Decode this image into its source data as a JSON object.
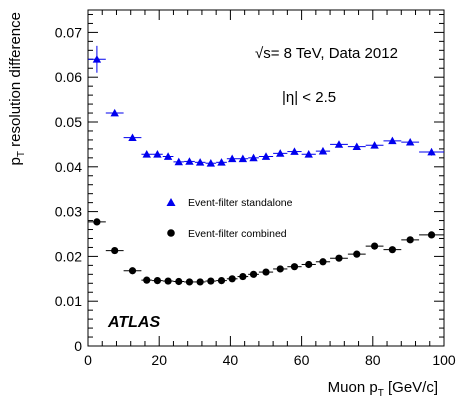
{
  "chart_data": {
    "type": "scatter",
    "xlabel_main": "Muon p",
    "xlabel_sub": "T",
    "xlabel_unit": " [GeV/c]",
    "ylabel_main": "p",
    "ylabel_sub": "T",
    "ylabel_rest": " resolution difference",
    "xlim": [
      0,
      100
    ],
    "ylim": [
      0,
      0.075
    ],
    "x_ticks": [
      0,
      20,
      40,
      60,
      80,
      100
    ],
    "y_ticks": [
      0,
      0.01,
      0.02,
      0.03,
      0.04,
      0.05,
      0.06,
      0.07
    ],
    "x_tick_labels": [
      "0",
      "20",
      "40",
      "60",
      "80",
      "100"
    ],
    "y_tick_labels": [
      "0",
      "0.01",
      "0.02",
      "0.03",
      "0.04",
      "0.05",
      "0.06",
      "0.07"
    ],
    "grid": false,
    "legend_position": "center-left",
    "annotations": {
      "energy_sqrt": "√s",
      "energy_rest": "= 8 TeV, Data 2012",
      "eta": "|η| < 2.5",
      "atlas": "ATLAS"
    },
    "series": [
      {
        "name": "Event-filter  standalone",
        "marker": "triangle",
        "color": "#0000ee",
        "points": [
          {
            "x0": 0,
            "x1": 5,
            "y": 0.064,
            "err": 0.003
          },
          {
            "x0": 5,
            "x1": 10,
            "y": 0.052,
            "err": 0.0005
          },
          {
            "x0": 10,
            "x1": 15,
            "y": 0.0465,
            "err": 0.0004
          },
          {
            "x0": 15,
            "x1": 18,
            "y": 0.0428,
            "err": 0.0003
          },
          {
            "x0": 18,
            "x1": 21,
            "y": 0.0428,
            "err": 0.0003
          },
          {
            "x0": 21,
            "x1": 24,
            "y": 0.0423,
            "err": 0.0003
          },
          {
            "x0": 24,
            "x1": 27,
            "y": 0.0411,
            "err": 0.0003
          },
          {
            "x0": 27,
            "x1": 30,
            "y": 0.0412,
            "err": 0.0003
          },
          {
            "x0": 30,
            "x1": 33,
            "y": 0.041,
            "err": 0.0003
          },
          {
            "x0": 33,
            "x1": 36,
            "y": 0.0408,
            "err": 0.0003
          },
          {
            "x0": 36,
            "x1": 39,
            "y": 0.041,
            "err": 0.0003
          },
          {
            "x0": 39,
            "x1": 42,
            "y": 0.0418,
            "err": 0.0003
          },
          {
            "x0": 42,
            "x1": 45,
            "y": 0.0418,
            "err": 0.0003
          },
          {
            "x0": 45,
            "x1": 48,
            "y": 0.042,
            "err": 0.0003
          },
          {
            "x0": 48,
            "x1": 52,
            "y": 0.0423,
            "err": 0.0003
          },
          {
            "x0": 52,
            "x1": 56,
            "y": 0.043,
            "err": 0.0003
          },
          {
            "x0": 56,
            "x1": 60,
            "y": 0.0434,
            "err": 0.0003
          },
          {
            "x0": 60,
            "x1": 64,
            "y": 0.0428,
            "err": 0.0003
          },
          {
            "x0": 64,
            "x1": 68,
            "y": 0.0435,
            "err": 0.0003
          },
          {
            "x0": 68,
            "x1": 73,
            "y": 0.045,
            "err": 0.0004
          },
          {
            "x0": 73,
            "x1": 78,
            "y": 0.0445,
            "err": 0.0004
          },
          {
            "x0": 78,
            "x1": 83,
            "y": 0.0448,
            "err": 0.0004
          },
          {
            "x0": 83,
            "x1": 88,
            "y": 0.0458,
            "err": 0.0005
          },
          {
            "x0": 88,
            "x1": 93,
            "y": 0.0455,
            "err": 0.0005
          },
          {
            "x0": 93,
            "x1": 100,
            "y": 0.0433,
            "err": 0.0008
          }
        ]
      },
      {
        "name": "Event-filter  combined",
        "marker": "circle",
        "color": "#000000",
        "points": [
          {
            "x0": 0,
            "x1": 5,
            "y": 0.0277,
            "err": 0.0003
          },
          {
            "x0": 5,
            "x1": 10,
            "y": 0.0213,
            "err": 0.0002
          },
          {
            "x0": 10,
            "x1": 15,
            "y": 0.0168,
            "err": 0.0002
          },
          {
            "x0": 15,
            "x1": 18,
            "y": 0.0147,
            "err": 0.0001
          },
          {
            "x0": 18,
            "x1": 21,
            "y": 0.0146,
            "err": 0.0001
          },
          {
            "x0": 21,
            "x1": 24,
            "y": 0.0145,
            "err": 0.0001
          },
          {
            "x0": 24,
            "x1": 27,
            "y": 0.0144,
            "err": 0.0001
          },
          {
            "x0": 27,
            "x1": 30,
            "y": 0.0143,
            "err": 0.0001
          },
          {
            "x0": 30,
            "x1": 33,
            "y": 0.0143,
            "err": 0.0001
          },
          {
            "x0": 33,
            "x1": 36,
            "y": 0.0145,
            "err": 0.0001
          },
          {
            "x0": 36,
            "x1": 39,
            "y": 0.0146,
            "err": 0.0001
          },
          {
            "x0": 39,
            "x1": 42,
            "y": 0.015,
            "err": 0.0001
          },
          {
            "x0": 42,
            "x1": 45,
            "y": 0.0155,
            "err": 0.0001
          },
          {
            "x0": 45,
            "x1": 48,
            "y": 0.016,
            "err": 0.0001
          },
          {
            "x0": 48,
            "x1": 52,
            "y": 0.0165,
            "err": 0.0001
          },
          {
            "x0": 52,
            "x1": 56,
            "y": 0.0172,
            "err": 0.0001
          },
          {
            "x0": 56,
            "x1": 60,
            "y": 0.0177,
            "err": 0.0001
          },
          {
            "x0": 60,
            "x1": 64,
            "y": 0.0182,
            "err": 0.0001
          },
          {
            "x0": 64,
            "x1": 68,
            "y": 0.0188,
            "err": 0.0001
          },
          {
            "x0": 68,
            "x1": 73,
            "y": 0.0196,
            "err": 0.0002
          },
          {
            "x0": 73,
            "x1": 78,
            "y": 0.0205,
            "err": 0.0002
          },
          {
            "x0": 78,
            "x1": 83,
            "y": 0.0223,
            "err": 0.0002
          },
          {
            "x0": 83,
            "x1": 88,
            "y": 0.0215,
            "err": 0.0002
          },
          {
            "x0": 88,
            "x1": 93,
            "y": 0.0237,
            "err": 0.0002
          },
          {
            "x0": 93,
            "x1": 100,
            "y": 0.0248,
            "err": 0.0003
          }
        ]
      }
    ]
  }
}
